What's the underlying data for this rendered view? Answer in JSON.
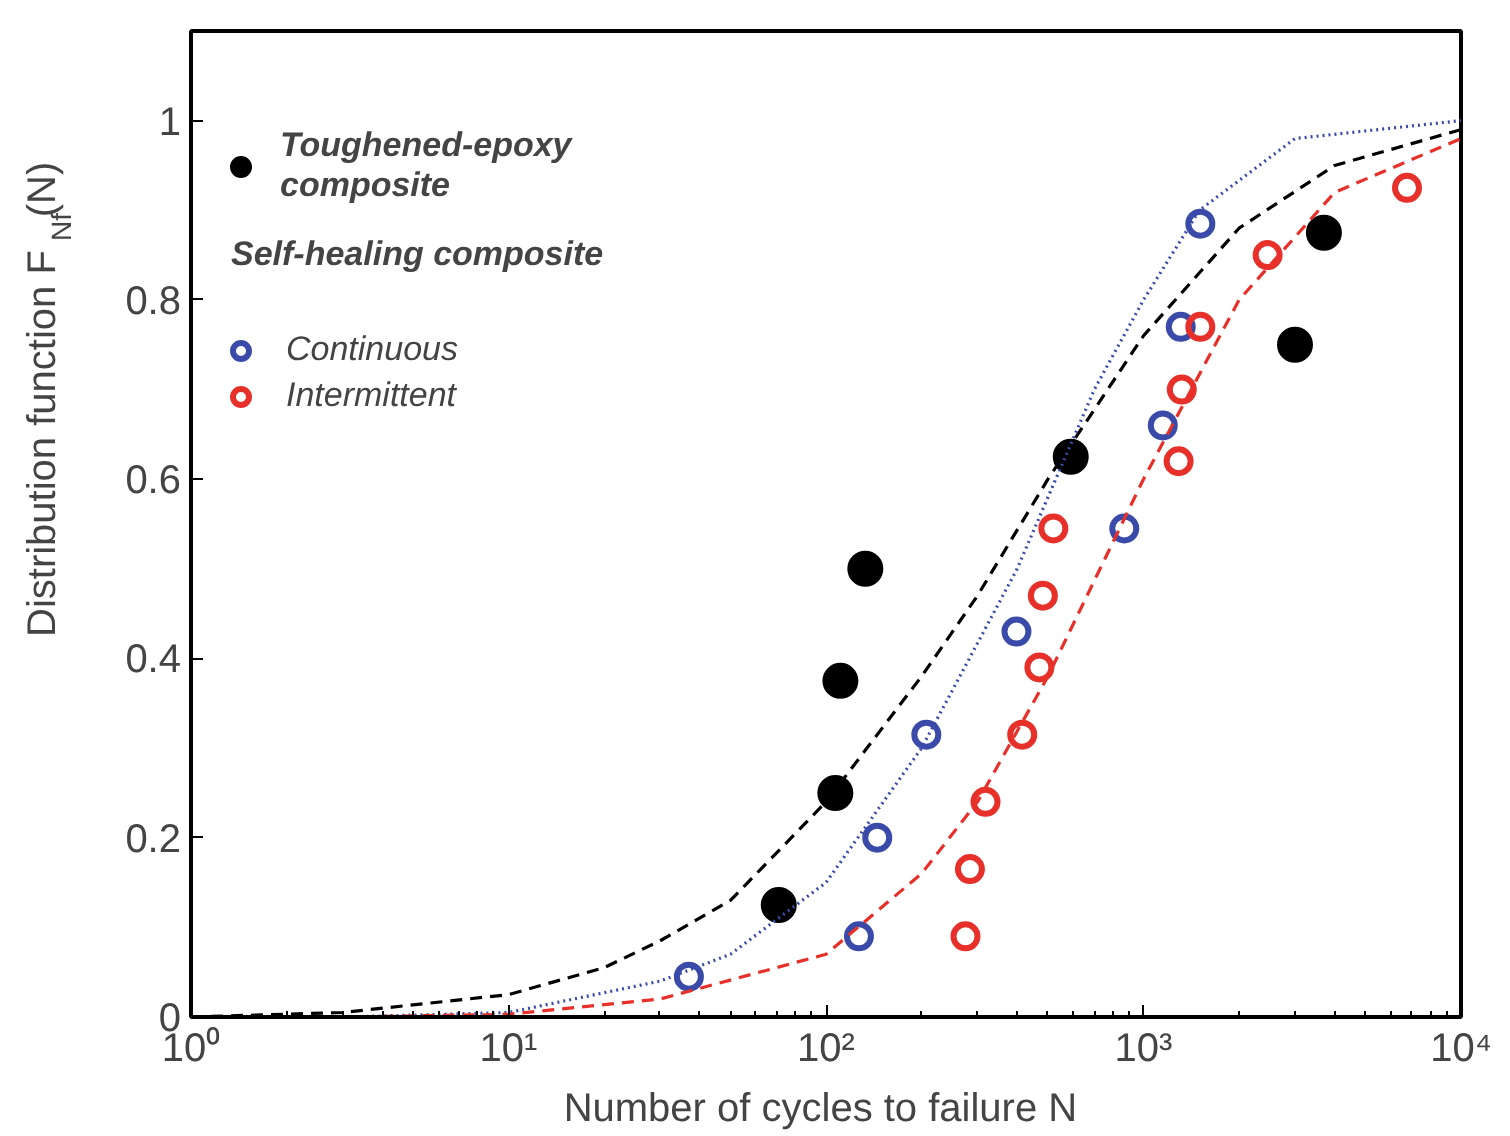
{
  "chart_data": {
    "type": "scatter",
    "xlabel": "Number of cycles to failure  N",
    "ylabel": "Distribution function F$_{Nf}$(N)",
    "log": "x",
    "xlim": [
      1,
      10000
    ],
    "ylim": [
      0,
      1.1
    ],
    "xticks": [
      {
        "value": 1,
        "label": "10⁰"
      },
      {
        "value": 10,
        "label": "10¹"
      },
      {
        "value": 100,
        "label": "10²"
      },
      {
        "value": 1000,
        "label": "10³"
      },
      {
        "value": 10000,
        "label": "10⁴"
      }
    ],
    "yticks": [
      0,
      0.2,
      0.4,
      0.6,
      0.8,
      1
    ],
    "grid": false,
    "legend": "top left",
    "annotations": [
      "Self-healing composite"
    ],
    "series": [
      {
        "name": "Toughened-epoxy composite",
        "color": "#000000",
        "marker": "circle",
        "x": [
          71,
          107,
          111,
          133,
          590,
          3000,
          3700
        ],
        "values": [
          0.125,
          0.25,
          0.375,
          0.5,
          0.625,
          0.75,
          0.875
        ]
      },
      {
        "name": "Continuous",
        "color": "#3a4aa8",
        "marker": "circle",
        "x": [
          37,
          127,
          145,
          207,
          398,
          870,
          1150,
          1310,
          1510
        ],
        "values": [
          0.045,
          0.09,
          0.2,
          0.315,
          0.43,
          0.545,
          0.66,
          0.77,
          0.885
        ]
      },
      {
        "name": "Intermittent",
        "color": "#e8302a",
        "marker": "circle",
        "x": [
          275,
          284,
          318,
          415,
          470,
          482,
          520,
          1290,
          1320,
          1510,
          2460,
          6760
        ],
        "values": [
          0.09,
          0.165,
          0.24,
          0.315,
          0.39,
          0.47,
          0.545,
          0.62,
          0.7,
          0.77,
          0.85,
          0.925
        ]
      },
      {
        "type": "line",
        "line_style": "dashed",
        "color": "#000000",
        "x": [
          1,
          3,
          10,
          20,
          30,
          50,
          100,
          200,
          300,
          500,
          1000,
          2000,
          4000,
          10000
        ],
        "values": [
          0,
          0.005,
          0.025,
          0.055,
          0.085,
          0.13,
          0.24,
          0.38,
          0.47,
          0.6,
          0.76,
          0.88,
          0.95,
          0.99
        ]
      },
      {
        "type": "line",
        "line_style": "dotted",
        "color": "#3a4aa8",
        "x": [
          3,
          10,
          30,
          50,
          100,
          200,
          400,
          700,
          1000,
          1500,
          3000,
          10000
        ],
        "values": [
          0,
          0.005,
          0.04,
          0.07,
          0.15,
          0.3,
          0.5,
          0.7,
          0.8,
          0.9,
          0.98,
          1.0
        ]
      },
      {
        "type": "line",
        "line_style": "dashed",
        "color": "#e8302a",
        "x": [
          3,
          10,
          30,
          100,
          200,
          300,
          500,
          1000,
          2000,
          4000,
          10000
        ],
        "values": [
          0,
          0.003,
          0.02,
          0.07,
          0.16,
          0.24,
          0.38,
          0.6,
          0.8,
          0.92,
          0.98
        ]
      }
    ]
  }
}
